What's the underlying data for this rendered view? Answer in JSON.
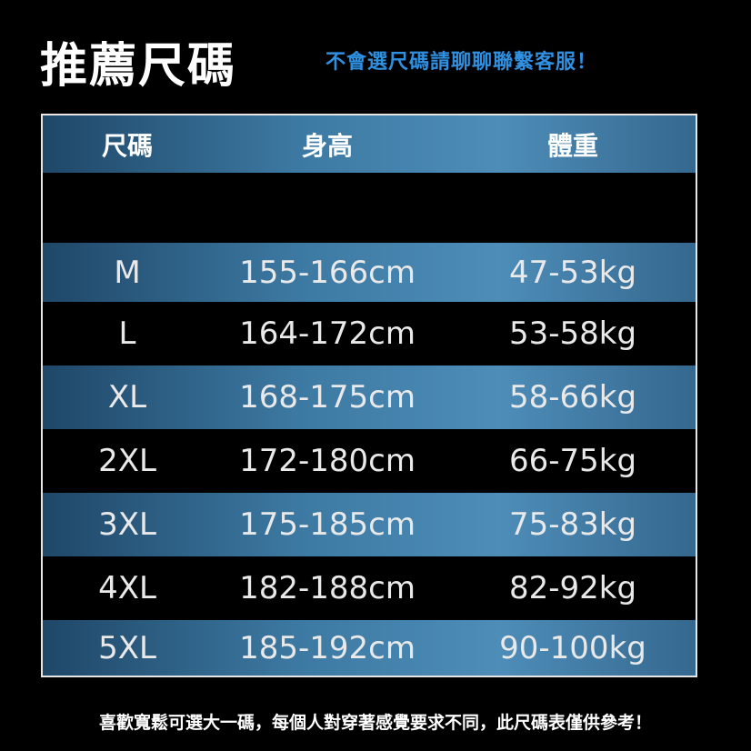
{
  "header": {
    "title": "推薦尺碼",
    "note": "不會選尺碼請聊聊聯繫客服！"
  },
  "table": {
    "columns": [
      "尺碼",
      "身高",
      "體重"
    ],
    "rows": [
      [
        "M",
        "155-166cm",
        "47-53kg"
      ],
      [
        "L",
        "164-172cm",
        "53-58kg"
      ],
      [
        "XL",
        "168-175cm",
        "58-66kg"
      ],
      [
        "2XL",
        "172-180cm",
        "66-75kg"
      ],
      [
        "3XL",
        "175-185cm",
        "75-83kg"
      ],
      [
        "4XL",
        "182-188cm",
        "82-92kg"
      ],
      [
        "5XL",
        "185-192cm",
        "90-100kg"
      ]
    ]
  },
  "footer": "喜歡寬鬆可選大一碼，每個人對穿著感覺要求不同，此尺碼表僅供參考！"
}
